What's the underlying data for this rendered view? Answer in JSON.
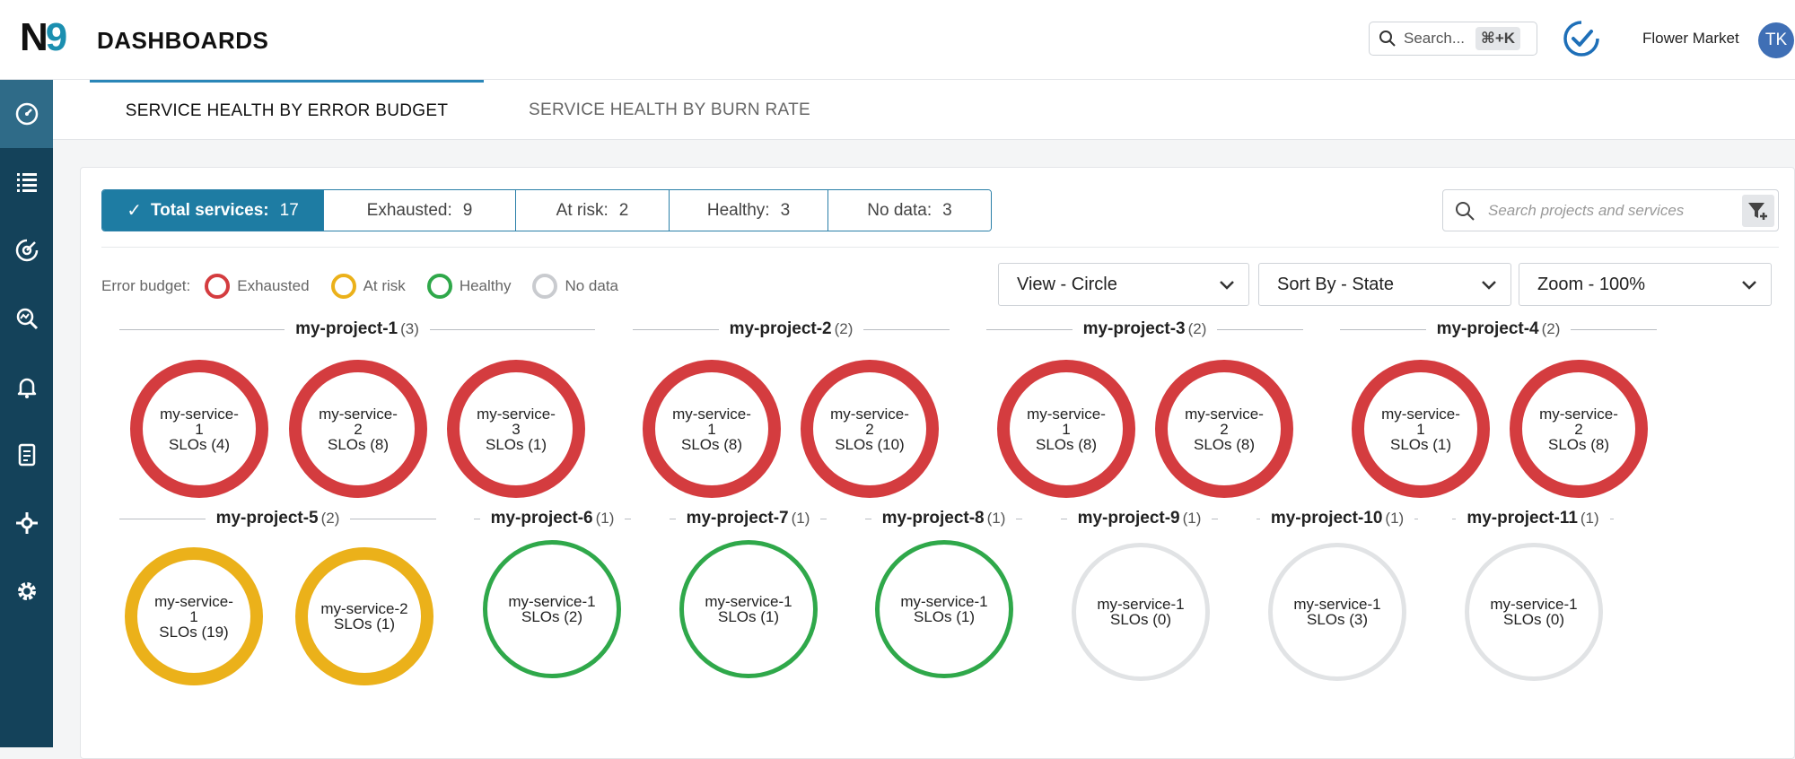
{
  "header": {
    "logo_text": "N",
    "logo_nine": "9",
    "title": "DASHBOARDS",
    "search_placeholder": "Search...",
    "search_shortcut": "⌘+K",
    "org_name": "Flower Market",
    "avatar_initials": "TK"
  },
  "sidebar": {
    "items": [
      {
        "icon": "dashboard-gauge-icon",
        "active": true
      },
      {
        "icon": "list-icon",
        "active": false
      },
      {
        "icon": "slo-target-icon",
        "active": false
      },
      {
        "icon": "analyze-icon",
        "active": false
      },
      {
        "icon": "alert-bell-icon",
        "active": false
      },
      {
        "icon": "report-icon",
        "active": false
      },
      {
        "icon": "integrations-icon",
        "active": false
      },
      {
        "icon": "settings-gear-icon",
        "active": false
      }
    ]
  },
  "tabs": [
    {
      "label": "SERVICE HEALTH BY ERROR BUDGET",
      "active": true
    },
    {
      "label": "SERVICE HEALTH BY BURN RATE",
      "active": false
    }
  ],
  "filters": [
    {
      "label": "Total services:",
      "value": "17",
      "active": true
    },
    {
      "label": "Exhausted:",
      "value": "9",
      "active": false
    },
    {
      "label": "At risk:",
      "value": "2",
      "active": false
    },
    {
      "label": "Healthy:",
      "value": "3",
      "active": false
    },
    {
      "label": "No data:",
      "value": "3",
      "active": false
    }
  ],
  "project_search_placeholder": "Search projects and services",
  "legend": {
    "title": "Error budget:",
    "items": [
      {
        "label": "Exhausted",
        "color": "#d43c3f"
      },
      {
        "label": "At risk",
        "color": "#ebb11a"
      },
      {
        "label": "Healthy",
        "color": "#2fa84a"
      },
      {
        "label": "No data",
        "color": "#c9cbcf"
      }
    ]
  },
  "dropdowns": {
    "view": "View - Circle",
    "sort": "Sort By - State",
    "zoom": "Zoom - 100%"
  },
  "projects": [
    {
      "name": "my-project-1",
      "count": "(3)",
      "services": [
        {
          "name": "my-service-1",
          "slos": "SLOs (4)",
          "state": "red"
        },
        {
          "name": "my-service-2",
          "slos": "SLOs (8)",
          "state": "red"
        },
        {
          "name": "my-service-3",
          "slos": "SLOs (1)",
          "state": "red"
        }
      ]
    },
    {
      "name": "my-project-2",
      "count": "(2)",
      "services": [
        {
          "name": "my-service-1",
          "slos": "SLOs (8)",
          "state": "red"
        },
        {
          "name": "my-service-2",
          "slos": "SLOs (10)",
          "state": "red"
        }
      ]
    },
    {
      "name": "my-project-3",
      "count": "(2)",
      "services": [
        {
          "name": "my-service-1",
          "slos": "SLOs (8)",
          "state": "red"
        },
        {
          "name": "my-service-2",
          "slos": "SLOs (8)",
          "state": "red"
        }
      ]
    },
    {
      "name": "my-project-4",
      "count": "(2)",
      "services": [
        {
          "name": "my-service-1",
          "slos": "SLOs (1)",
          "state": "red"
        },
        {
          "name": "my-service-2",
          "slos": "SLOs (8)",
          "state": "red"
        }
      ]
    },
    {
      "name": "my-project-5",
      "count": "(2)",
      "services": [
        {
          "name": "my-service-1",
          "slos": "SLOs (19)",
          "state": "yellow"
        },
        {
          "name": "my-service-2",
          "slos": "SLOs (1)",
          "state": "yellow"
        }
      ]
    },
    {
      "name": "my-project-6",
      "count": "(1)",
      "services": [
        {
          "name": "my-service-1",
          "slos": "SLOs (2)",
          "state": "green"
        }
      ]
    },
    {
      "name": "my-project-7",
      "count": "(1)",
      "services": [
        {
          "name": "my-service-1",
          "slos": "SLOs (1)",
          "state": "green"
        }
      ]
    },
    {
      "name": "my-project-8",
      "count": "(1)",
      "services": [
        {
          "name": "my-service-1",
          "slos": "SLOs (1)",
          "state": "green"
        }
      ]
    },
    {
      "name": "my-project-9",
      "count": "(1)",
      "services": [
        {
          "name": "my-service-1",
          "slos": "SLOs (0)",
          "state": "gray"
        }
      ]
    },
    {
      "name": "my-project-10",
      "count": "(1)",
      "services": [
        {
          "name": "my-service-1",
          "slos": "SLOs (3)",
          "state": "gray"
        }
      ]
    },
    {
      "name": "my-project-11",
      "count": "(1)",
      "services": [
        {
          "name": "my-service-1",
          "slos": "SLOs (0)",
          "state": "gray"
        }
      ]
    }
  ]
}
